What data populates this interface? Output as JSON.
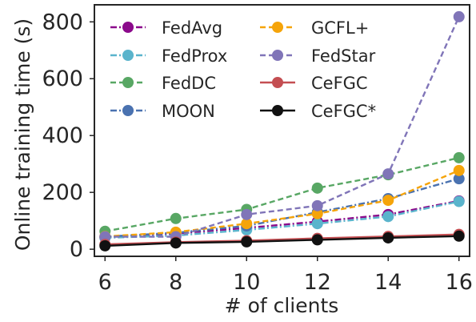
{
  "chart_data": {
    "type": "line",
    "xlabel": "# of clients",
    "ylabel": "Online training time (s)",
    "x": [
      6,
      8,
      10,
      12,
      14,
      16
    ],
    "xticks": [
      6,
      8,
      10,
      12,
      14,
      16
    ],
    "yticks": [
      0,
      200,
      400,
      600,
      800
    ],
    "xlim": [
      5.7,
      16.3
    ],
    "ylim": [
      -25,
      860
    ],
    "grid": false,
    "legend_position": "top-left",
    "legend_columns": 2,
    "series": [
      {
        "name": "FedAvg",
        "color": "#8b0a8b",
        "linestyle": "dashdot",
        "values": [
          42,
          55,
          75,
          97,
          122,
          170
        ]
      },
      {
        "name": "FedProx",
        "color": "#5ab4cc",
        "linestyle": "dashdot",
        "values": [
          40,
          48,
          68,
          90,
          115,
          168
        ]
      },
      {
        "name": "FedDC",
        "color": "#58a764",
        "linestyle": "dashed",
        "values": [
          63,
          108,
          140,
          215,
          262,
          322
        ]
      },
      {
        "name": "MOON",
        "color": "#4a72b0",
        "linestyle": "dashdot",
        "values": [
          44,
          58,
          82,
          130,
          178,
          248
        ]
      },
      {
        "name": "GCFL+",
        "color": "#f5a40a",
        "linestyle": "dashed",
        "values": [
          45,
          60,
          90,
          125,
          172,
          277
        ]
      },
      {
        "name": "FedStar",
        "color": "#8075b8",
        "linestyle": "dashed",
        "values": [
          44,
          44,
          122,
          153,
          265,
          818
        ]
      },
      {
        "name": "CeFGC",
        "color": "#c44e52",
        "linestyle": "solid",
        "values": [
          17,
          25,
          30,
          38,
          45,
          52
        ]
      },
      {
        "name": "CeFGC*",
        "color": "#111111",
        "linestyle": "solid",
        "values": [
          12,
          22,
          26,
          33,
          40,
          46
        ]
      }
    ]
  }
}
